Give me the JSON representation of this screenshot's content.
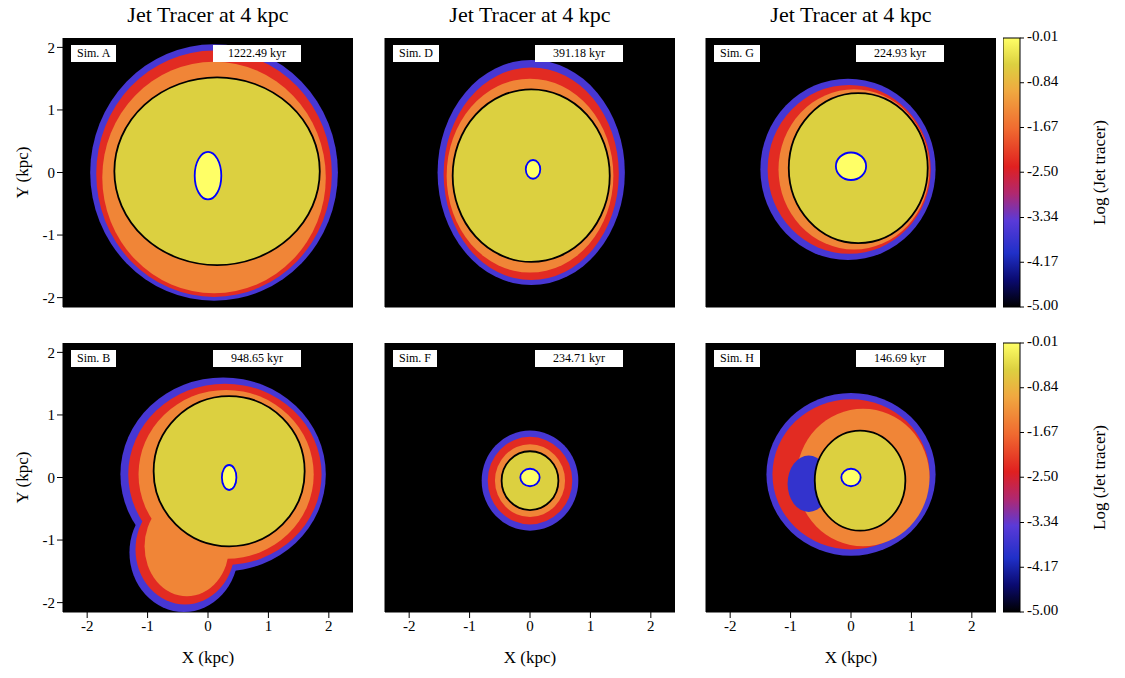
{
  "chart_data": [
    {
      "type": "heatmap",
      "title": "Jet Tracer at 4 kpc",
      "label": "Sim. A",
      "time": "1222.49 kyr",
      "ylabel": "Y (kpc)",
      "xlim": [
        -2.4,
        2.4
      ],
      "ylim": [
        -2.15,
        2.15
      ],
      "xticks": [
        -2,
        -1,
        0,
        1,
        2
      ],
      "yticks": [
        -2,
        -1,
        0,
        1,
        2
      ],
      "tick_labels": "y",
      "regions": [
        {
          "level": -3.6,
          "cx": 0.1,
          "cy": 0,
          "rx": 2.05,
          "ry": 2.05
        },
        {
          "level": -2.3,
          "cx": 0.1,
          "cy": -0.02,
          "rx": 1.95,
          "ry": 1.97
        },
        {
          "level": -1.4,
          "cx": 0.1,
          "cy": -0.08,
          "rx": 1.85,
          "ry": 1.85
        },
        {
          "level": -0.5,
          "cx": 0.15,
          "cy": 0.02,
          "rx": 1.7,
          "ry": 1.5,
          "contour": "#000000"
        },
        {
          "level": -0.01,
          "cx": 0,
          "cy": -0.05,
          "rx": 0.22,
          "ry": 0.38,
          "contour": "#0000ff"
        }
      ]
    },
    {
      "type": "heatmap",
      "title": "Jet Tracer at 4 kpc",
      "label": "Sim. D",
      "time": "391.18 kyr",
      "xlim": [
        -2.4,
        2.4
      ],
      "ylim": [
        -2.15,
        2.15
      ],
      "xticks": [
        -2,
        -1,
        0,
        1,
        2
      ],
      "yticks": [
        -2,
        -1,
        0,
        1,
        2
      ],
      "tick_labels": false,
      "regions": [
        {
          "level": -3.6,
          "cx": 0.02,
          "cy": 0,
          "rx": 1.55,
          "ry": 1.8
        },
        {
          "level": -2.3,
          "cx": 0.02,
          "cy": -0.02,
          "rx": 1.45,
          "ry": 1.7
        },
        {
          "level": -1.4,
          "cx": 0,
          "cy": -0.05,
          "rx": 1.38,
          "ry": 1.55
        },
        {
          "level": -0.5,
          "cx": 0.02,
          "cy": -0.05,
          "rx": 1.3,
          "ry": 1.38,
          "contour": "#000000"
        },
        {
          "level": -0.01,
          "cx": 0.05,
          "cy": 0.05,
          "rx": 0.12,
          "ry": 0.15,
          "contour": "#0000ff"
        }
      ]
    },
    {
      "type": "heatmap",
      "title": "Jet Tracer at 4 kpc",
      "label": "Sim. G",
      "time": "224.93 kyr",
      "xlim": [
        -2.4,
        2.4
      ],
      "ylim": [
        -2.15,
        2.15
      ],
      "xticks": [
        -2,
        -1,
        0,
        1,
        2
      ],
      "yticks": [
        -2,
        -1,
        0,
        1,
        2
      ],
      "tick_labels": false,
      "regions": [
        {
          "level": -3.6,
          "cx": -0.05,
          "cy": 0.05,
          "rx": 1.45,
          "ry": 1.45
        },
        {
          "level": -2.3,
          "cx": -0.03,
          "cy": 0.05,
          "rx": 1.35,
          "ry": 1.35
        },
        {
          "level": -1.4,
          "cx": 0.05,
          "cy": 0.05,
          "rx": 1.25,
          "ry": 1.28
        },
        {
          "level": -0.5,
          "cx": 0.12,
          "cy": 0.07,
          "rx": 1.15,
          "ry": 1.2,
          "contour": "#000000"
        },
        {
          "level": -0.01,
          "cx": 0,
          "cy": 0.1,
          "rx": 0.25,
          "ry": 0.22,
          "contour": "#0000ff"
        }
      ]
    },
    {
      "type": "heatmap",
      "label": "Sim. B",
      "time": "948.65 kyr",
      "xlabel": "X (kpc)",
      "ylabel": "Y (kpc)",
      "xlim": [
        -2.4,
        2.4
      ],
      "ylim": [
        -2.15,
        2.15
      ],
      "xticks": [
        -2,
        -1,
        0,
        1,
        2
      ],
      "yticks": [
        -2,
        -1,
        0,
        1,
        2
      ],
      "tick_labels": true,
      "regions": [
        {
          "level": -3.6,
          "cx": 0.25,
          "cy": 0.05,
          "rx": 1.7,
          "ry": 1.55
        },
        {
          "level": -3.6,
          "cx": -0.4,
          "cy": -1.2,
          "rx": 0.9,
          "ry": 0.95
        },
        {
          "level": -2.3,
          "cx": 0.28,
          "cy": 0.05,
          "rx": 1.6,
          "ry": 1.45
        },
        {
          "level": -2.3,
          "cx": -0.38,
          "cy": -1.15,
          "rx": 0.82,
          "ry": 0.88
        },
        {
          "level": -1.4,
          "cx": 0.3,
          "cy": 0.05,
          "rx": 1.45,
          "ry": 1.35
        },
        {
          "level": -1.4,
          "cx": -0.35,
          "cy": -1.1,
          "rx": 0.7,
          "ry": 0.8
        },
        {
          "level": -0.5,
          "cx": 0.35,
          "cy": 0.1,
          "rx": 1.25,
          "ry": 1.2,
          "contour": "#000000"
        },
        {
          "level": -0.01,
          "cx": 0.35,
          "cy": 0,
          "rx": 0.12,
          "ry": 0.2,
          "contour": "#0000ff"
        }
      ]
    },
    {
      "type": "heatmap",
      "label": "Sim. F",
      "time": "234.71 kyr",
      "xlabel": "X (kpc)",
      "xlim": [
        -2.4,
        2.4
      ],
      "ylim": [
        -2.15,
        2.15
      ],
      "xticks": [
        -2,
        -1,
        0,
        1,
        2
      ],
      "yticks": [
        -2,
        -1,
        0,
        1,
        2
      ],
      "tick_labels": "x",
      "regions": [
        {
          "level": -3.6,
          "cx": 0,
          "cy": -0.05,
          "rx": 0.8,
          "ry": 0.8
        },
        {
          "level": -2.3,
          "cx": 0,
          "cy": -0.05,
          "rx": 0.7,
          "ry": 0.7
        },
        {
          "level": -1.4,
          "cx": 0,
          "cy": -0.05,
          "rx": 0.58,
          "ry": 0.58
        },
        {
          "level": -0.5,
          "cx": 0,
          "cy": -0.05,
          "rx": 0.47,
          "ry": 0.47,
          "contour": "#000000"
        },
        {
          "level": -0.01,
          "cx": 0,
          "cy": 0,
          "rx": 0.16,
          "ry": 0.14,
          "contour": "#0000ff"
        }
      ]
    },
    {
      "type": "heatmap",
      "label": "Sim. H",
      "time": "146.69 kyr",
      "xlabel": "X (kpc)",
      "xlim": [
        -2.4,
        2.4
      ],
      "ylim": [
        -2.15,
        2.15
      ],
      "xticks": [
        -2,
        -1,
        0,
        1,
        2
      ],
      "yticks": [
        -2,
        -1,
        0,
        1,
        2
      ],
      "tick_labels": "x",
      "regions": [
        {
          "level": -3.6,
          "cx": 0,
          "cy": 0.05,
          "rx": 1.4,
          "ry": 1.3
        },
        {
          "level": -2.3,
          "cx": 0,
          "cy": 0.05,
          "rx": 1.3,
          "ry": 1.2
        },
        {
          "level": -1.4,
          "cx": 0.2,
          "cy": 0,
          "rx": 1.1,
          "ry": 1.1
        },
        {
          "level": -3.8,
          "cx": -0.7,
          "cy": -0.1,
          "rx": 0.35,
          "ry": 0.45
        },
        {
          "level": -0.5,
          "cx": 0.15,
          "cy": -0.05,
          "rx": 0.75,
          "ry": 0.8,
          "contour": "#000000"
        },
        {
          "level": -0.01,
          "cx": 0,
          "cy": 0,
          "rx": 0.16,
          "ry": 0.14,
          "contour": "#0000ff"
        }
      ]
    }
  ],
  "colorbars": [
    {
      "label": "Log (Jet tracer)",
      "range": [
        -5,
        -0.01
      ],
      "ticks": [
        {
          "value": -5,
          "label": "-5.00"
        },
        -4.17,
        -3.34,
        {
          "value": -2.5,
          "label": "-2.50"
        },
        -1.67,
        -0.84,
        -0.01
      ]
    },
    {
      "label": "Log (Jet tracer)",
      "range": [
        -5,
        -0.01
      ],
      "ticks": [
        {
          "value": -5,
          "label": "-5.00"
        },
        -4.17,
        -3.34,
        {
          "value": -2.5,
          "label": "-2.50"
        },
        -1.67,
        -0.84,
        -0.01
      ]
    }
  ]
}
